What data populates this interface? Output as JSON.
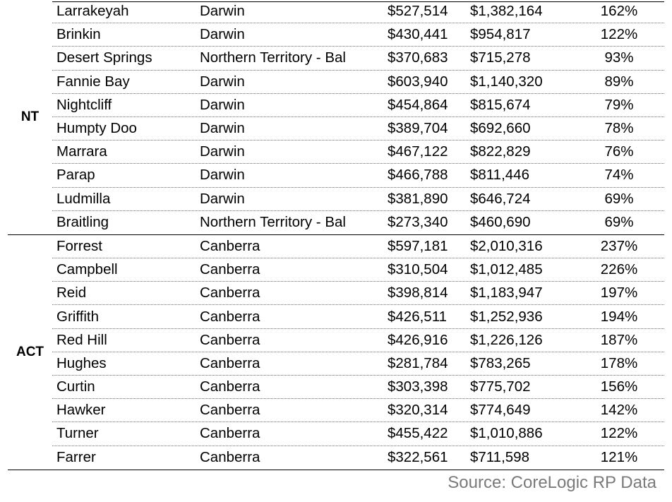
{
  "groups": [
    {
      "label": "NT",
      "rows": [
        {
          "suburb": "Larrakeyah",
          "region": "Darwin",
          "v1": "$527,514",
          "v2": "$1,382,164",
          "pct": "162%"
        },
        {
          "suburb": "Brinkin",
          "region": "Darwin",
          "v1": "$430,441",
          "v2": "$954,817",
          "pct": "122%"
        },
        {
          "suburb": "Desert Springs",
          "region": "Northern Territory - Bal",
          "v1": "$370,683",
          "v2": "$715,278",
          "pct": "93%"
        },
        {
          "suburb": "Fannie Bay",
          "region": "Darwin",
          "v1": "$603,940",
          "v2": "$1,140,320",
          "pct": "89%"
        },
        {
          "suburb": "Nightcliff",
          "region": "Darwin",
          "v1": "$454,864",
          "v2": "$815,674",
          "pct": "79%"
        },
        {
          "suburb": "Humpty Doo",
          "region": "Darwin",
          "v1": "$389,704",
          "v2": "$692,660",
          "pct": "78%"
        },
        {
          "suburb": "Marrara",
          "region": "Darwin",
          "v1": "$467,122",
          "v2": "$822,829",
          "pct": "76%"
        },
        {
          "suburb": "Parap",
          "region": "Darwin",
          "v1": "$466,788",
          "v2": "$811,446",
          "pct": "74%"
        },
        {
          "suburb": "Ludmilla",
          "region": "Darwin",
          "v1": "$381,890",
          "v2": "$646,724",
          "pct": "69%"
        },
        {
          "suburb": "Braitling",
          "region": "Northern Territory - Bal",
          "v1": "$273,340",
          "v2": "$460,690",
          "pct": "69%"
        }
      ]
    },
    {
      "label": "ACT",
      "rows": [
        {
          "suburb": "Forrest",
          "region": "Canberra",
          "v1": "$597,181",
          "v2": "$2,010,316",
          "pct": "237%"
        },
        {
          "suburb": "Campbell",
          "region": "Canberra",
          "v1": "$310,504",
          "v2": "$1,012,485",
          "pct": "226%"
        },
        {
          "suburb": "Reid",
          "region": "Canberra",
          "v1": "$398,814",
          "v2": "$1,183,947",
          "pct": "197%"
        },
        {
          "suburb": "Griffith",
          "region": "Canberra",
          "v1": "$426,511",
          "v2": "$1,252,936",
          "pct": "194%"
        },
        {
          "suburb": "Red Hill",
          "region": "Canberra",
          "v1": "$426,916",
          "v2": "$1,226,126",
          "pct": "187%"
        },
        {
          "suburb": "Hughes",
          "region": "Canberra",
          "v1": "$281,784",
          "v2": "$783,265",
          "pct": "178%"
        },
        {
          "suburb": "Curtin",
          "region": "Canberra",
          "v1": "$303,398",
          "v2": "$775,702",
          "pct": "156%"
        },
        {
          "suburb": "Hawker",
          "region": "Canberra",
          "v1": "$320,314",
          "v2": "$774,649",
          "pct": "142%"
        },
        {
          "suburb": "Turner",
          "region": "Canberra",
          "v1": "$455,422",
          "v2": "$1,010,886",
          "pct": "122%"
        },
        {
          "suburb": "Farrer",
          "region": "Canberra",
          "v1": "$322,561",
          "v2": "$711,598",
          "pct": "121%"
        }
      ]
    }
  ],
  "source": "Source: CoreLogic RP Data"
}
